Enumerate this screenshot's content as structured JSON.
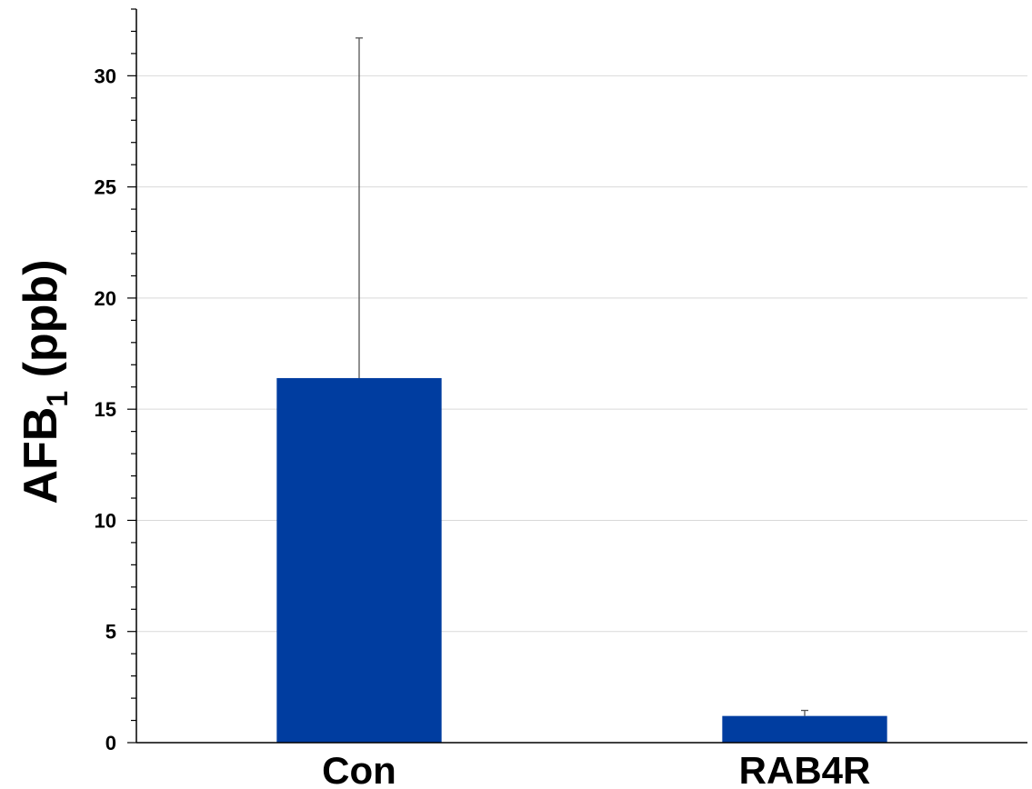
{
  "chart_data": {
    "type": "bar",
    "categories": [
      "Con",
      "RAB4R"
    ],
    "values": [
      16.4,
      1.2
    ],
    "error_upper": [
      31.7,
      1.45
    ],
    "title": "",
    "xlabel": "",
    "ylabel": {
      "main": "AFB",
      "subscript": "1",
      "unit": " (ppb)"
    },
    "ylim": [
      0,
      33
    ],
    "yticks": [
      0,
      5,
      10,
      15,
      20,
      25,
      30
    ],
    "minor_tick_step": 1,
    "grid": true,
    "legend": "none",
    "colors": {
      "bar": "#003da0",
      "grid": "#d9d9d9",
      "axis": "#000000"
    }
  }
}
